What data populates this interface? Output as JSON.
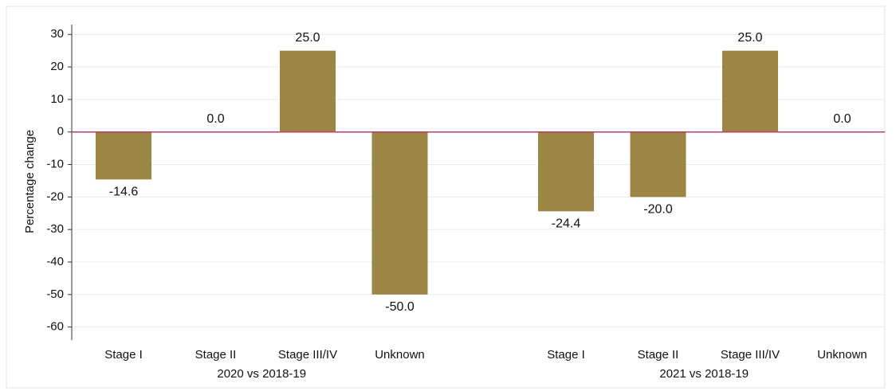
{
  "chart_data": {
    "type": "bar",
    "y_label": "Percentage change",
    "color": "#9c8646",
    "zero_line_color": "#c0396b",
    "grid": true,
    "ylim": [
      -64,
      33
    ],
    "yticks": [
      -60,
      -50,
      -40,
      -30,
      -20,
      -10,
      0,
      10,
      20,
      30
    ],
    "groups": [
      {
        "label": "2020 vs 2018-19",
        "categories": [
          "Stage I",
          "Stage II",
          "Stage III/IV",
          "Unknown"
        ],
        "values": [
          -14.6,
          0,
          25,
          -50
        ],
        "value_labels": [
          "-14.6",
          "0.0",
          "25.0",
          "-50.0"
        ]
      },
      {
        "label": "2021 vs 2018-19",
        "categories": [
          "Stage I",
          "Stage II",
          "Stage III/IV",
          "Unknown"
        ],
        "values": [
          -24.4,
          -20,
          25,
          0
        ],
        "value_labels": [
          "-24.4",
          "-20.0",
          "25.0",
          "0.0"
        ]
      }
    ]
  }
}
